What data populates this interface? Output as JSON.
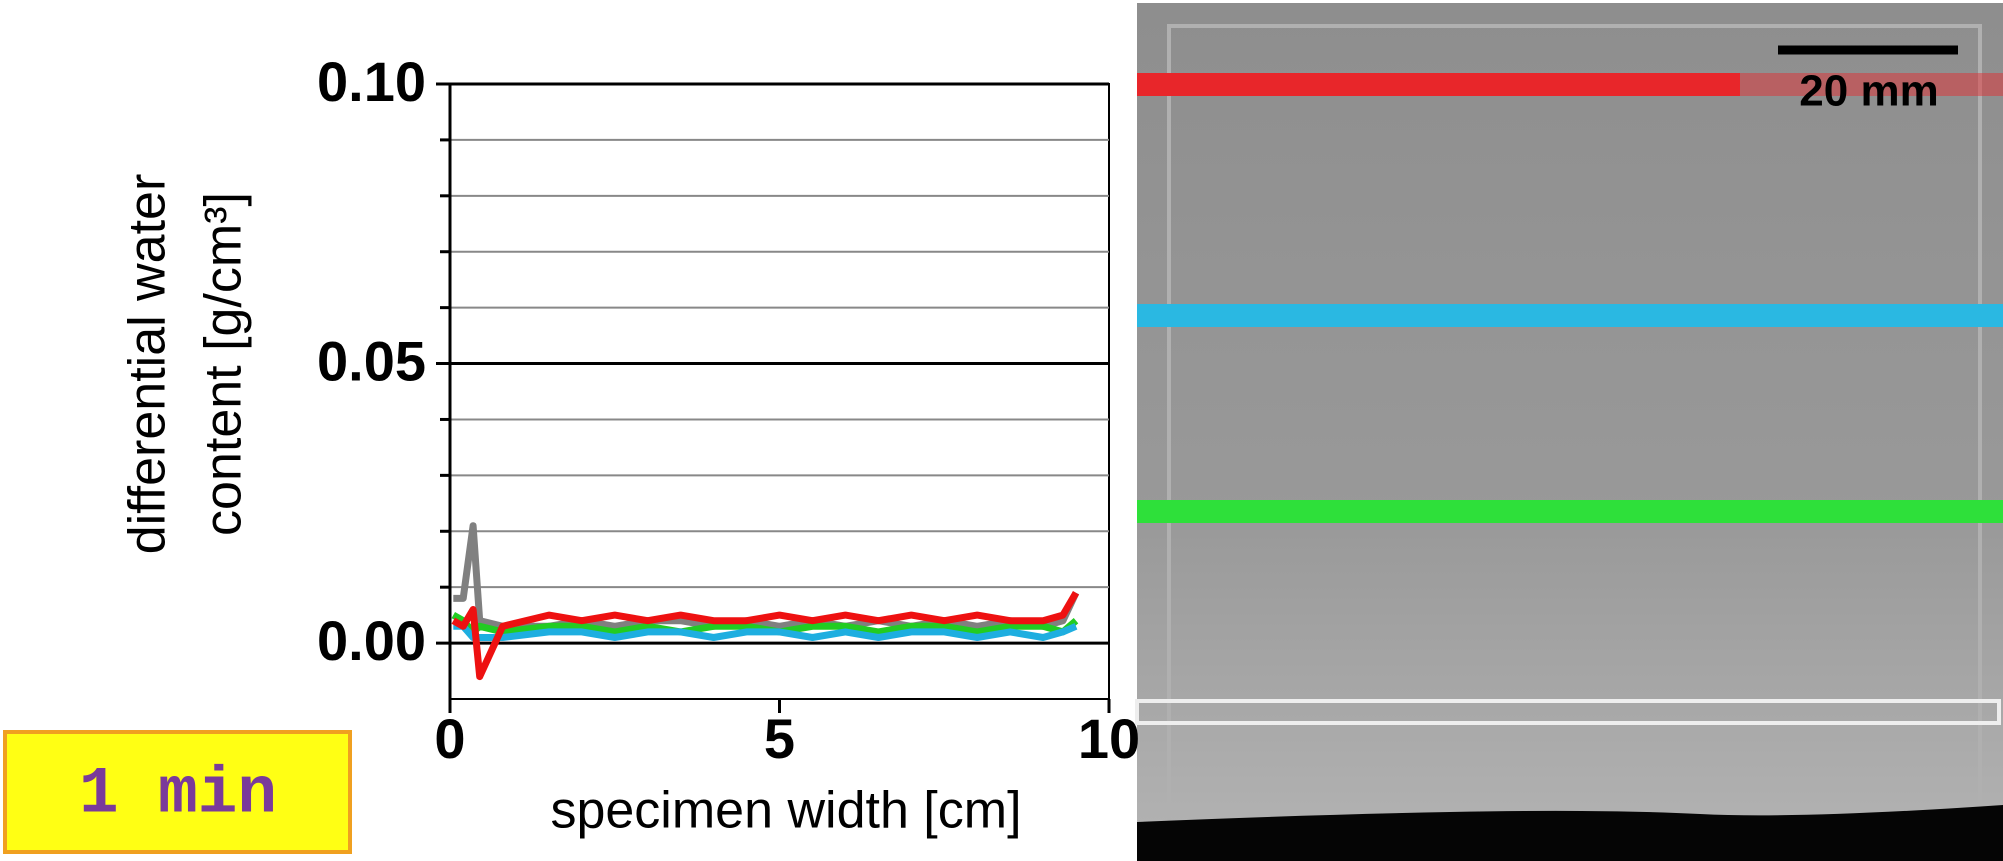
{
  "chart_data": {
    "type": "line",
    "xlabel": "specimen width  [cm]",
    "ylabel": [
      "differential water",
      "content  [g/cm³]"
    ],
    "x": [
      0.05,
      0.2,
      0.35,
      0.45,
      0.8,
      1.5,
      2,
      2.5,
      3,
      3.5,
      4,
      4.5,
      5,
      5.5,
      6,
      6.5,
      7,
      7.5,
      8,
      8.5,
      9,
      9.3,
      9.5
    ],
    "series": [
      {
        "color": "#808080",
        "values": [
          0.008,
          0.008,
          0.021,
          0.004,
          0.003,
          0.003,
          0.004,
          0.003,
          0.004,
          0.004,
          0.003,
          0.004,
          0.003,
          0.004,
          0.003,
          0.004,
          0.003,
          0.004,
          0.003,
          0.004,
          0.003,
          0.004,
          0.009
        ]
      },
      {
        "color": "#22cc22",
        "values": [
          0.005,
          0.004,
          0.002,
          0.003,
          0.002,
          0.003,
          0.003,
          0.002,
          0.003,
          0.002,
          0.003,
          0.003,
          0.002,
          0.003,
          0.003,
          0.002,
          0.003,
          0.003,
          0.002,
          0.003,
          0.003,
          0.002,
          0.004
        ]
      },
      {
        "color": "#1eaee0",
        "values": [
          0.003,
          0.003,
          0.001,
          0.001,
          0.001,
          0.002,
          0.002,
          0.001,
          0.002,
          0.002,
          0.001,
          0.002,
          0.002,
          0.001,
          0.002,
          0.001,
          0.002,
          0.002,
          0.001,
          0.002,
          0.001,
          0.002,
          0.003
        ]
      },
      {
        "color": "#ee1111",
        "values": [
          0.004,
          0.003,
          0.006,
          -0.006,
          0.003,
          0.005,
          0.004,
          0.005,
          0.004,
          0.005,
          0.004,
          0.004,
          0.005,
          0.004,
          0.005,
          0.004,
          0.005,
          0.004,
          0.005,
          0.004,
          0.004,
          0.005,
          0.009
        ]
      }
    ],
    "xlim": [
      0,
      10
    ],
    "xticks": [
      0,
      5,
      10
    ],
    "ylim": [
      -0.01,
      0.1
    ],
    "yticks": [
      {
        "value": 0.0,
        "label": "0.00"
      },
      {
        "value": 0.05,
        "label": "0.05"
      },
      {
        "value": 0.1,
        "label": "0.10"
      }
    ],
    "ygrid": [
      0.01,
      0.02,
      0.03,
      0.04,
      0.06,
      0.07,
      0.08,
      0.09
    ],
    "grid": true,
    "annotations": {
      "time": "1 min",
      "scale_bar": "20 mm"
    }
  }
}
